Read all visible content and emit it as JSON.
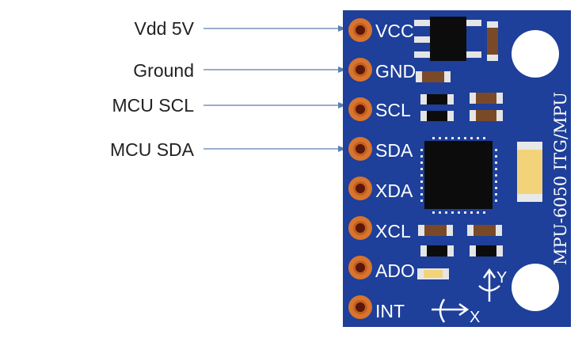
{
  "callouts": [
    {
      "label": "Vdd 5V",
      "pin": "VCC"
    },
    {
      "label": "Ground",
      "pin": "GND"
    },
    {
      "label": "MCU SCL",
      "pin": "SCL"
    },
    {
      "label": "MCU SDA",
      "pin": "SDA"
    }
  ],
  "board": {
    "pins": [
      "VCC",
      "GND",
      "SCL",
      "SDA",
      "XDA",
      "XCL",
      "ADO",
      "INT"
    ],
    "silkscreen": "MPU-6050 ITG/MPU",
    "axis_x": "X",
    "axis_y": "Y",
    "colors": {
      "pcb": "#1e3f9a",
      "pad": "#d8742d",
      "pad_hole": "#5a1608",
      "chip": "#0c0c0c",
      "smd_end": "#e5e5e5",
      "smd_body": "#7a4a28",
      "capacitor": "#f2d37a",
      "arrow": "#5b7fb0"
    }
  }
}
